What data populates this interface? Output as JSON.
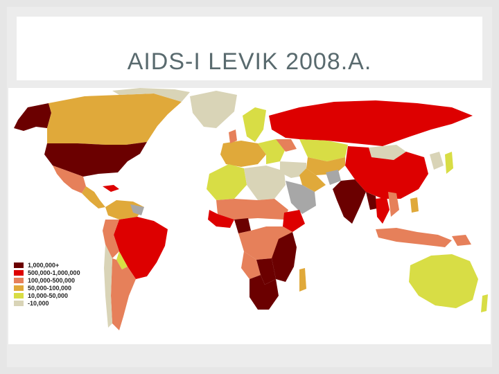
{
  "slide": {
    "title": "AIDS-I LEVIK 2008.A."
  },
  "map": {
    "legend": [
      {
        "label": "1,000,000+",
        "color": "#6b0000"
      },
      {
        "label": "500,000-1,000,000",
        "color": "#dd0000"
      },
      {
        "label": "100,000-500,000",
        "color": "#e6805a"
      },
      {
        "label": "50,000-100,000",
        "color": "#e0a93a"
      },
      {
        "label": "10,000-50,000",
        "color": "#d8dd45"
      },
      {
        "label": "-10,000",
        "color": "#d9d4b7"
      }
    ],
    "other_color": "#a7a7a7"
  }
}
